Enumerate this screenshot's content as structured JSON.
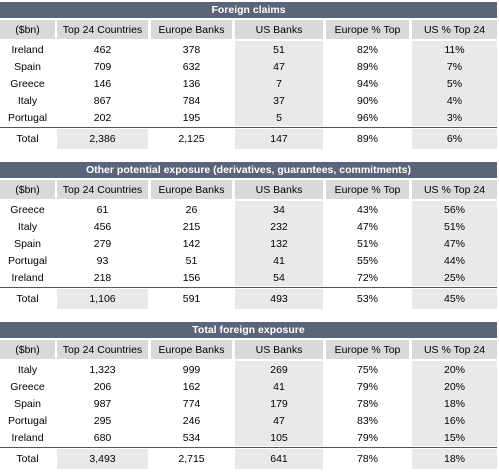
{
  "tables": [
    {
      "title": "Foreign claims",
      "headers": [
        "($bn)",
        "Top 24 Countries",
        "Europe Banks",
        "US Banks",
        "Europe % Top",
        "US % Top 24"
      ],
      "rows": [
        [
          "Ireland",
          "462",
          "378",
          "51",
          "82%",
          "11%"
        ],
        [
          "Spain",
          "709",
          "632",
          "47",
          "89%",
          "7%"
        ],
        [
          "Greece",
          "146",
          "136",
          "7",
          "94%",
          "5%"
        ],
        [
          "Italy",
          "867",
          "784",
          "37",
          "90%",
          "4%"
        ],
        [
          "Portugal",
          "202",
          "195",
          "5",
          "96%",
          "3%"
        ]
      ],
      "total": [
        "Total",
        "2,386",
        "2,125",
        "147",
        "89%",
        "6%"
      ]
    },
    {
      "title": "Other potential exposure (derivatives, guarantees, commitments)",
      "headers": [
        "($bn)",
        "Top 24 Countries",
        "Europe Banks",
        "US Banks",
        "Europe % Top",
        "US % Top 24"
      ],
      "rows": [
        [
          "Greece",
          "61",
          "26",
          "34",
          "43%",
          "56%"
        ],
        [
          "Italy",
          "456",
          "215",
          "232",
          "47%",
          "51%"
        ],
        [
          "Spain",
          "279",
          "142",
          "132",
          "51%",
          "47%"
        ],
        [
          "Portugal",
          "93",
          "51",
          "41",
          "55%",
          "44%"
        ],
        [
          "Ireland",
          "218",
          "156",
          "54",
          "72%",
          "25%"
        ]
      ],
      "total": [
        "Total",
        "1,106",
        "591",
        "493",
        "53%",
        "45%"
      ]
    },
    {
      "title": "Total foreign exposure",
      "headers": [
        "($bn)",
        "Top 24 Countries",
        "Europe Banks",
        "US Banks",
        "Europe % Top",
        "US % Top 24"
      ],
      "rows": [
        [
          "Italy",
          "1,323",
          "999",
          "269",
          "75%",
          "20%"
        ],
        [
          "Greece",
          "206",
          "162",
          "41",
          "79%",
          "20%"
        ],
        [
          "Spain",
          "987",
          "774",
          "179",
          "78%",
          "18%"
        ],
        [
          "Portugal",
          "295",
          "246",
          "47",
          "83%",
          "16%"
        ],
        [
          "Ireland",
          "680",
          "534",
          "105",
          "79%",
          "15%"
        ]
      ],
      "total": [
        "Total",
        "3,493",
        "2,715",
        "641",
        "78%",
        "18%"
      ]
    }
  ]
}
